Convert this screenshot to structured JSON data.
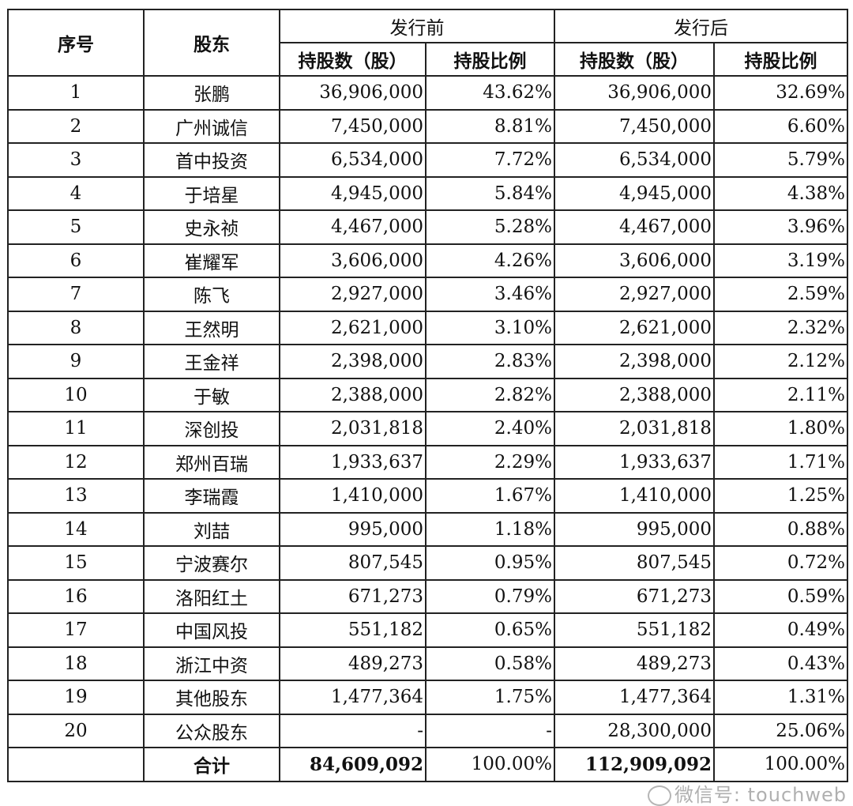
{
  "headers": {
    "seq": "序号",
    "shareholder": "股东",
    "before": "发行前",
    "after": "发行后",
    "shares": "持股数（股）",
    "ratio": "持股比例"
  },
  "rows": [
    {
      "no": "1",
      "name": "张鹏",
      "before_shares": "36,906,000",
      "before_ratio": "43.62%",
      "after_shares": "36,906,000",
      "after_ratio": "32.69%"
    },
    {
      "no": "2",
      "name": "广州诚信",
      "before_shares": "7,450,000",
      "before_ratio": "8.81%",
      "after_shares": "7,450,000",
      "after_ratio": "6.60%"
    },
    {
      "no": "3",
      "name": "首中投资",
      "before_shares": "6,534,000",
      "before_ratio": "7.72%",
      "after_shares": "6,534,000",
      "after_ratio": "5.79%"
    },
    {
      "no": "4",
      "name": "于培星",
      "before_shares": "4,945,000",
      "before_ratio": "5.84%",
      "after_shares": "4,945,000",
      "after_ratio": "4.38%"
    },
    {
      "no": "5",
      "name": "史永祯",
      "before_shares": "4,467,000",
      "before_ratio": "5.28%",
      "after_shares": "4,467,000",
      "after_ratio": "3.96%"
    },
    {
      "no": "6",
      "name": "崔耀军",
      "before_shares": "3,606,000",
      "before_ratio": "4.26%",
      "after_shares": "3,606,000",
      "after_ratio": "3.19%"
    },
    {
      "no": "7",
      "name": "陈飞",
      "before_shares": "2,927,000",
      "before_ratio": "3.46%",
      "after_shares": "2,927,000",
      "after_ratio": "2.59%"
    },
    {
      "no": "8",
      "name": "王然明",
      "before_shares": "2,621,000",
      "before_ratio": "3.10%",
      "after_shares": "2,621,000",
      "after_ratio": "2.32%"
    },
    {
      "no": "9",
      "name": "王金祥",
      "before_shares": "2,398,000",
      "before_ratio": "2.83%",
      "after_shares": "2,398,000",
      "after_ratio": "2.12%"
    },
    {
      "no": "10",
      "name": "于敏",
      "before_shares": "2,388,000",
      "before_ratio": "2.82%",
      "after_shares": "2,388,000",
      "after_ratio": "2.11%"
    },
    {
      "no": "11",
      "name": "深创投",
      "before_shares": "2,031,818",
      "before_ratio": "2.40%",
      "after_shares": "2,031,818",
      "after_ratio": "1.80%"
    },
    {
      "no": "12",
      "name": "郑州百瑞",
      "before_shares": "1,933,637",
      "before_ratio": "2.29%",
      "after_shares": "1,933,637",
      "after_ratio": "1.71%"
    },
    {
      "no": "13",
      "name": "李瑞霞",
      "before_shares": "1,410,000",
      "before_ratio": "1.67%",
      "after_shares": "1,410,000",
      "after_ratio": "1.25%"
    },
    {
      "no": "14",
      "name": "刘喆",
      "before_shares": "995,000",
      "before_ratio": "1.18%",
      "after_shares": "995,000",
      "after_ratio": "0.88%"
    },
    {
      "no": "15",
      "name": "宁波赛尔",
      "before_shares": "807,545",
      "before_ratio": "0.95%",
      "after_shares": "807,545",
      "after_ratio": "0.72%"
    },
    {
      "no": "16",
      "name": "洛阳红土",
      "before_shares": "671,273",
      "before_ratio": "0.79%",
      "after_shares": "671,273",
      "after_ratio": "0.59%"
    },
    {
      "no": "17",
      "name": "中国风投",
      "before_shares": "551,182",
      "before_ratio": "0.65%",
      "after_shares": "551,182",
      "after_ratio": "0.49%"
    },
    {
      "no": "18",
      "name": "浙江中资",
      "before_shares": "489,273",
      "before_ratio": "0.58%",
      "after_shares": "489,273",
      "after_ratio": "0.43%"
    },
    {
      "no": "19",
      "name": "其他股东",
      "before_shares": "1,477,364",
      "before_ratio": "1.75%",
      "after_shares": "1,477,364",
      "after_ratio": "1.31%"
    },
    {
      "no": "20",
      "name": "公众股东",
      "before_shares": "-",
      "before_ratio": "-",
      "after_shares": "28,300,000",
      "after_ratio": "25.06%"
    }
  ],
  "total": {
    "label": "合计",
    "before_shares": "84,609,092",
    "before_ratio": "100.00%",
    "after_shares": "112,909,092",
    "after_ratio": "100.00%"
  },
  "watermark": "微信号: touchweb"
}
